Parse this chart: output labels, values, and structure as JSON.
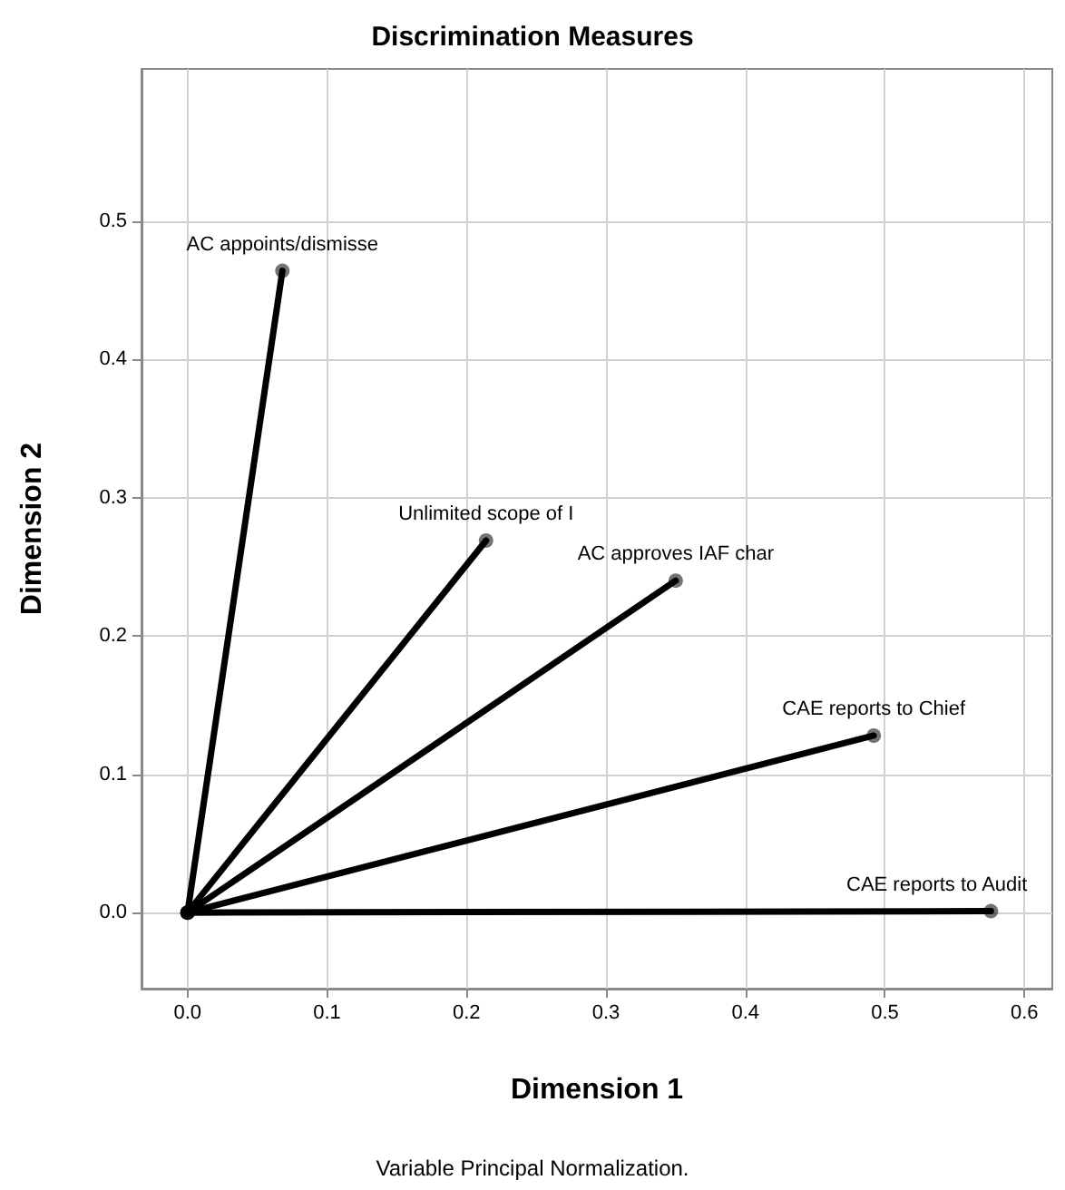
{
  "chart_data": {
    "type": "line",
    "title": "Discrimination Measures",
    "xlabel": "Dimension 1",
    "ylabel": "Dimension 2",
    "annotations": [
      "Variable Principal Normalization."
    ],
    "series": [
      {
        "name": "AC appoints/dismisse",
        "color": "#000000",
        "x": [
          0,
          0.068
        ],
        "values": [
          0,
          0.464
        ]
      },
      {
        "name": "Unlimited scope of I",
        "color": "#000000",
        "x": [
          0,
          0.214
        ],
        "values": [
          0,
          0.269
        ]
      },
      {
        "name": "AC approves IAF char",
        "color": "#000000",
        "x": [
          0,
          0.35
        ],
        "values": [
          0,
          0.24
        ]
      },
      {
        "name": "CAE reports to Chief",
        "color": "#000000",
        "x": [
          0,
          0.492
        ],
        "values": [
          0,
          0.128
        ]
      },
      {
        "name": "CAE reports to Audit",
        "color": "#000000",
        "x": [
          0,
          0.576
        ],
        "values": [
          0,
          0.001
        ]
      }
    ],
    "xlim": [
      -0.033,
      0.62
    ],
    "ylim": [
      -0.055,
      0.61
    ],
    "xticks": [
      {
        "value": 0,
        "label": "0.0"
      },
      {
        "value": 0.1,
        "label": "0.1"
      },
      {
        "value": 0.2,
        "label": "0.2"
      },
      {
        "value": 0.3,
        "label": "0.3"
      },
      {
        "value": 0.4,
        "label": "0.4"
      },
      {
        "value": 0.5,
        "label": "0.5"
      },
      {
        "value": 0.6,
        "label": "0.6"
      }
    ],
    "yticks": [
      {
        "value": 0,
        "label": "0.0"
      },
      {
        "value": 0.1,
        "label": "0.1"
      },
      {
        "value": 0.2,
        "label": "0.2"
      },
      {
        "value": 0.3,
        "label": "0.3"
      },
      {
        "value": 0.4,
        "label": "0.4"
      },
      {
        "value": 0.5,
        "label": "0.5"
      }
    ],
    "grid": true,
    "legend": false,
    "marker": "circle",
    "line_style": "solid"
  }
}
